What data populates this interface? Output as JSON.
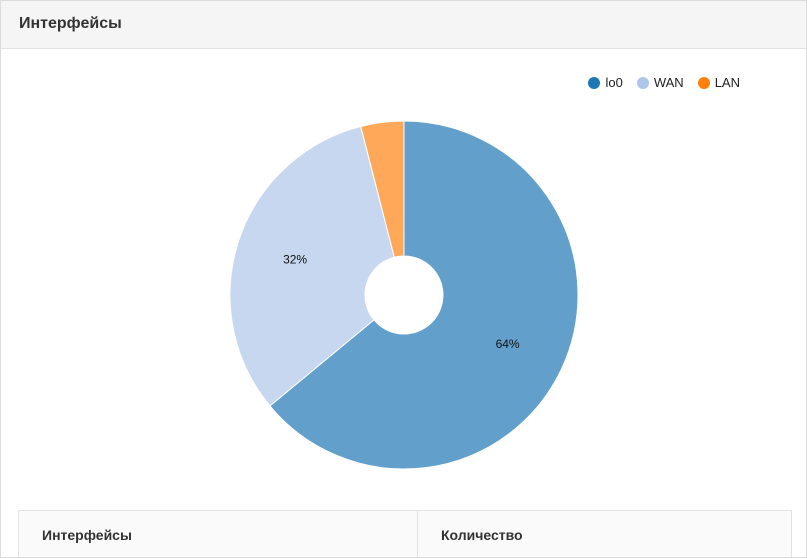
{
  "panel": {
    "title": "Интерфейсы"
  },
  "legend": [
    {
      "label": "lo0",
      "color": "#1f77b4"
    },
    {
      "label": "WAN",
      "color": "#aec7e8"
    },
    {
      "label": "LAN",
      "color": "#ff7f0e"
    }
  ],
  "chart_data": {
    "type": "pie",
    "donut": true,
    "categories": [
      "lo0",
      "WAN",
      "LAN"
    ],
    "values": [
      64,
      32,
      4
    ],
    "slice_labels": [
      "64%",
      "32%",
      ""
    ],
    "colors": [
      "#62a0cb",
      "#c6d7ef",
      "#ffa85a"
    ],
    "legend_colors": [
      "#1f77b4",
      "#aec7e8",
      "#ff7f0e"
    ],
    "legend_position": "top-right"
  },
  "table": {
    "headers": [
      "Интерфейсы",
      "Количество"
    ]
  }
}
